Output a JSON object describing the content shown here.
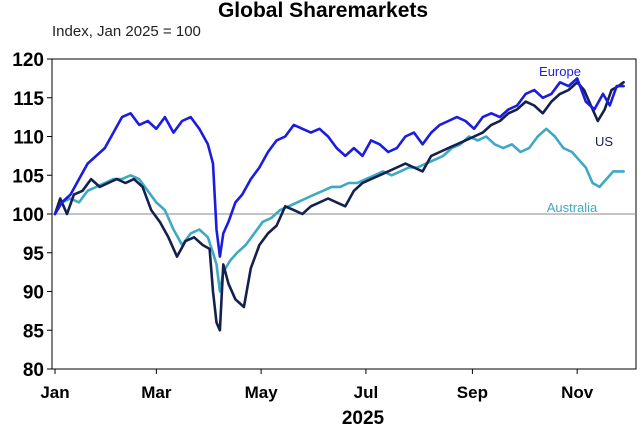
{
  "chart_data": {
    "type": "line",
    "title": "Global Sharemarkets",
    "subtitle": "Index, Jan 2025 = 100",
    "xlabel": "2025",
    "ylabel": "",
    "ylim": [
      80,
      120
    ],
    "yticks": [
      80,
      85,
      90,
      95,
      100,
      105,
      110,
      115,
      120
    ],
    "xlim": [
      "2025-01-01",
      "2025-11-30"
    ],
    "xticks": [
      {
        "label": "Jan",
        "date": "2025-01-01"
      },
      {
        "label": "Mar",
        "date": "2025-03-01"
      },
      {
        "label": "May",
        "date": "2025-05-01"
      },
      {
        "label": "Jul",
        "date": "2025-07-01"
      },
      {
        "label": "Sep",
        "date": "2025-09-01"
      },
      {
        "label": "Nov",
        "date": "2025-11-01"
      }
    ],
    "reference_line": 100,
    "grid": false,
    "series": [
      {
        "name": "Europe",
        "color": "#1c1ce0",
        "label_position": "top-right",
        "points": [
          [
            "2025-01-01",
            100
          ],
          [
            "2025-01-05",
            101.5
          ],
          [
            "2025-01-10",
            102.5
          ],
          [
            "2025-01-15",
            104.5
          ],
          [
            "2025-01-20",
            106.5
          ],
          [
            "2025-01-25",
            107.5
          ],
          [
            "2025-01-30",
            108.5
          ],
          [
            "2025-02-04",
            110.5
          ],
          [
            "2025-02-09",
            112.5
          ],
          [
            "2025-02-14",
            113
          ],
          [
            "2025-02-19",
            111.5
          ],
          [
            "2025-02-24",
            112
          ],
          [
            "2025-03-01",
            111
          ],
          [
            "2025-03-06",
            112.5
          ],
          [
            "2025-03-11",
            110.5
          ],
          [
            "2025-03-16",
            112
          ],
          [
            "2025-03-21",
            112.5
          ],
          [
            "2025-03-26",
            111
          ],
          [
            "2025-03-31",
            109
          ],
          [
            "2025-04-03",
            106.5
          ],
          [
            "2025-04-05",
            98
          ],
          [
            "2025-04-07",
            94.5
          ],
          [
            "2025-04-09",
            97.5
          ],
          [
            "2025-04-12",
            99
          ],
          [
            "2025-04-16",
            101.5
          ],
          [
            "2025-04-20",
            102.5
          ],
          [
            "2025-04-25",
            104.5
          ],
          [
            "2025-04-30",
            106
          ],
          [
            "2025-05-05",
            108
          ],
          [
            "2025-05-10",
            109.5
          ],
          [
            "2025-05-15",
            110
          ],
          [
            "2025-05-20",
            111.5
          ],
          [
            "2025-05-25",
            111
          ],
          [
            "2025-05-30",
            110.5
          ],
          [
            "2025-06-04",
            111
          ],
          [
            "2025-06-09",
            110
          ],
          [
            "2025-06-14",
            108.5
          ],
          [
            "2025-06-19",
            107.5
          ],
          [
            "2025-06-24",
            108.5
          ],
          [
            "2025-06-29",
            107.5
          ],
          [
            "2025-07-04",
            109.5
          ],
          [
            "2025-07-09",
            109
          ],
          [
            "2025-07-14",
            108
          ],
          [
            "2025-07-19",
            108.5
          ],
          [
            "2025-07-24",
            110
          ],
          [
            "2025-07-29",
            110.5
          ],
          [
            "2025-08-03",
            109
          ],
          [
            "2025-08-08",
            110.5
          ],
          [
            "2025-08-13",
            111.5
          ],
          [
            "2025-08-18",
            112
          ],
          [
            "2025-08-23",
            112.5
          ],
          [
            "2025-08-28",
            112
          ],
          [
            "2025-09-02",
            111
          ],
          [
            "2025-09-07",
            112.5
          ],
          [
            "2025-09-12",
            113
          ],
          [
            "2025-09-17",
            112.5
          ],
          [
            "2025-09-22",
            113.5
          ],
          [
            "2025-09-27",
            114
          ],
          [
            "2025-10-02",
            115.5
          ],
          [
            "2025-10-07",
            116
          ],
          [
            "2025-10-12",
            115
          ],
          [
            "2025-10-17",
            115.5
          ],
          [
            "2025-10-22",
            117
          ],
          [
            "2025-10-27",
            116.5
          ],
          [
            "2025-11-01",
            117.5
          ],
          [
            "2025-11-06",
            114.5
          ],
          [
            "2025-11-11",
            113.5
          ],
          [
            "2025-11-16",
            115.5
          ],
          [
            "2025-11-20",
            114
          ],
          [
            "2025-11-24",
            116.5
          ],
          [
            "2025-11-28",
            116.5
          ]
        ]
      },
      {
        "name": "US",
        "color": "#14214e",
        "label_position": "right",
        "points": [
          [
            "2025-01-01",
            100
          ],
          [
            "2025-01-04",
            102
          ],
          [
            "2025-01-08",
            100
          ],
          [
            "2025-01-12",
            102.5
          ],
          [
            "2025-01-17",
            103
          ],
          [
            "2025-01-22",
            104.5
          ],
          [
            "2025-01-27",
            103.5
          ],
          [
            "2025-02-01",
            104
          ],
          [
            "2025-02-06",
            104.5
          ],
          [
            "2025-02-11",
            104
          ],
          [
            "2025-02-16",
            104.5
          ],
          [
            "2025-02-21",
            103.5
          ],
          [
            "2025-02-26",
            100.5
          ],
          [
            "2025-03-03",
            99
          ],
          [
            "2025-03-08",
            97
          ],
          [
            "2025-03-13",
            94.5
          ],
          [
            "2025-03-18",
            96.5
          ],
          [
            "2025-03-23",
            97
          ],
          [
            "2025-03-28",
            96
          ],
          [
            "2025-04-01",
            95.5
          ],
          [
            "2025-04-03",
            90
          ],
          [
            "2025-04-05",
            86
          ],
          [
            "2025-04-07",
            85
          ],
          [
            "2025-04-09",
            93.5
          ],
          [
            "2025-04-12",
            91
          ],
          [
            "2025-04-16",
            89
          ],
          [
            "2025-04-21",
            88
          ],
          [
            "2025-04-25",
            93
          ],
          [
            "2025-04-30",
            96
          ],
          [
            "2025-05-05",
            97.5
          ],
          [
            "2025-05-10",
            98.5
          ],
          [
            "2025-05-15",
            101
          ],
          [
            "2025-05-20",
            100.5
          ],
          [
            "2025-05-25",
            100
          ],
          [
            "2025-05-30",
            101
          ],
          [
            "2025-06-04",
            101.5
          ],
          [
            "2025-06-09",
            102
          ],
          [
            "2025-06-14",
            101.5
          ],
          [
            "2025-06-19",
            101
          ],
          [
            "2025-06-24",
            103
          ],
          [
            "2025-06-29",
            104
          ],
          [
            "2025-07-04",
            104.5
          ],
          [
            "2025-07-09",
            105
          ],
          [
            "2025-07-14",
            105.5
          ],
          [
            "2025-07-19",
            106
          ],
          [
            "2025-07-24",
            106.5
          ],
          [
            "2025-07-29",
            106
          ],
          [
            "2025-08-03",
            105.5
          ],
          [
            "2025-08-08",
            107.5
          ],
          [
            "2025-08-13",
            108
          ],
          [
            "2025-08-18",
            108.5
          ],
          [
            "2025-08-23",
            109
          ],
          [
            "2025-08-28",
            109.5
          ],
          [
            "2025-09-02",
            110
          ],
          [
            "2025-09-07",
            110.5
          ],
          [
            "2025-09-12",
            111.5
          ],
          [
            "2025-09-17",
            112
          ],
          [
            "2025-09-22",
            113
          ],
          [
            "2025-09-27",
            113.5
          ],
          [
            "2025-10-02",
            114.5
          ],
          [
            "2025-10-07",
            114
          ],
          [
            "2025-10-12",
            113
          ],
          [
            "2025-10-17",
            114.5
          ],
          [
            "2025-10-22",
            115.5
          ],
          [
            "2025-10-27",
            116
          ],
          [
            "2025-11-01",
            117
          ],
          [
            "2025-11-05",
            116
          ],
          [
            "2025-11-09",
            114
          ],
          [
            "2025-11-13",
            112
          ],
          [
            "2025-11-17",
            113.5
          ],
          [
            "2025-11-21",
            116
          ],
          [
            "2025-11-25",
            116.5
          ],
          [
            "2025-11-28",
            117
          ]
        ]
      },
      {
        "name": "Australia",
        "color": "#3fa9c4",
        "label_position": "bottom-right",
        "points": [
          [
            "2025-01-01",
            100
          ],
          [
            "2025-01-05",
            101.5
          ],
          [
            "2025-01-10",
            102
          ],
          [
            "2025-01-15",
            101.5
          ],
          [
            "2025-01-20",
            103
          ],
          [
            "2025-01-25",
            103.5
          ],
          [
            "2025-01-30",
            104
          ],
          [
            "2025-02-04",
            104.5
          ],
          [
            "2025-02-09",
            104.5
          ],
          [
            "2025-02-14",
            105
          ],
          [
            "2025-02-19",
            104.5
          ],
          [
            "2025-02-24",
            103
          ],
          [
            "2025-03-01",
            101.5
          ],
          [
            "2025-03-06",
            100.5
          ],
          [
            "2025-03-11",
            98
          ],
          [
            "2025-03-16",
            96
          ],
          [
            "2025-03-21",
            97.5
          ],
          [
            "2025-03-26",
            98
          ],
          [
            "2025-03-31",
            97
          ],
          [
            "2025-04-03",
            95
          ],
          [
            "2025-04-05",
            93.5
          ],
          [
            "2025-04-07",
            90
          ],
          [
            "2025-04-09",
            92.5
          ],
          [
            "2025-04-13",
            94
          ],
          [
            "2025-04-17",
            95
          ],
          [
            "2025-04-22",
            96
          ],
          [
            "2025-04-27",
            97.5
          ],
          [
            "2025-05-02",
            99
          ],
          [
            "2025-05-07",
            99.5
          ],
          [
            "2025-05-12",
            100.5
          ],
          [
            "2025-05-17",
            101
          ],
          [
            "2025-05-22",
            101.5
          ],
          [
            "2025-05-27",
            102
          ],
          [
            "2025-06-01",
            102.5
          ],
          [
            "2025-06-06",
            103
          ],
          [
            "2025-06-11",
            103.5
          ],
          [
            "2025-06-16",
            103.5
          ],
          [
            "2025-06-21",
            104
          ],
          [
            "2025-06-26",
            104
          ],
          [
            "2025-07-01",
            104.5
          ],
          [
            "2025-07-06",
            105
          ],
          [
            "2025-07-11",
            105.5
          ],
          [
            "2025-07-16",
            105
          ],
          [
            "2025-07-21",
            105.5
          ],
          [
            "2025-07-26",
            106
          ],
          [
            "2025-07-31",
            106
          ],
          [
            "2025-08-05",
            106.5
          ],
          [
            "2025-08-10",
            107
          ],
          [
            "2025-08-15",
            107.5
          ],
          [
            "2025-08-20",
            108.5
          ],
          [
            "2025-08-25",
            109
          ],
          [
            "2025-08-30",
            110
          ],
          [
            "2025-09-04",
            109.5
          ],
          [
            "2025-09-09",
            110
          ],
          [
            "2025-09-14",
            109
          ],
          [
            "2025-09-19",
            108.5
          ],
          [
            "2025-09-24",
            109
          ],
          [
            "2025-09-29",
            108
          ],
          [
            "2025-10-04",
            108.5
          ],
          [
            "2025-10-09",
            110
          ],
          [
            "2025-10-14",
            111
          ],
          [
            "2025-10-19",
            110
          ],
          [
            "2025-10-24",
            108.5
          ],
          [
            "2025-10-29",
            108
          ],
          [
            "2025-11-02",
            107
          ],
          [
            "2025-11-06",
            106
          ],
          [
            "2025-11-10",
            104
          ],
          [
            "2025-11-14",
            103.5
          ],
          [
            "2025-11-18",
            104.5
          ],
          [
            "2025-11-22",
            105.5
          ],
          [
            "2025-11-26",
            105.5
          ],
          [
            "2025-11-28",
            105.5
          ]
        ]
      }
    ]
  }
}
